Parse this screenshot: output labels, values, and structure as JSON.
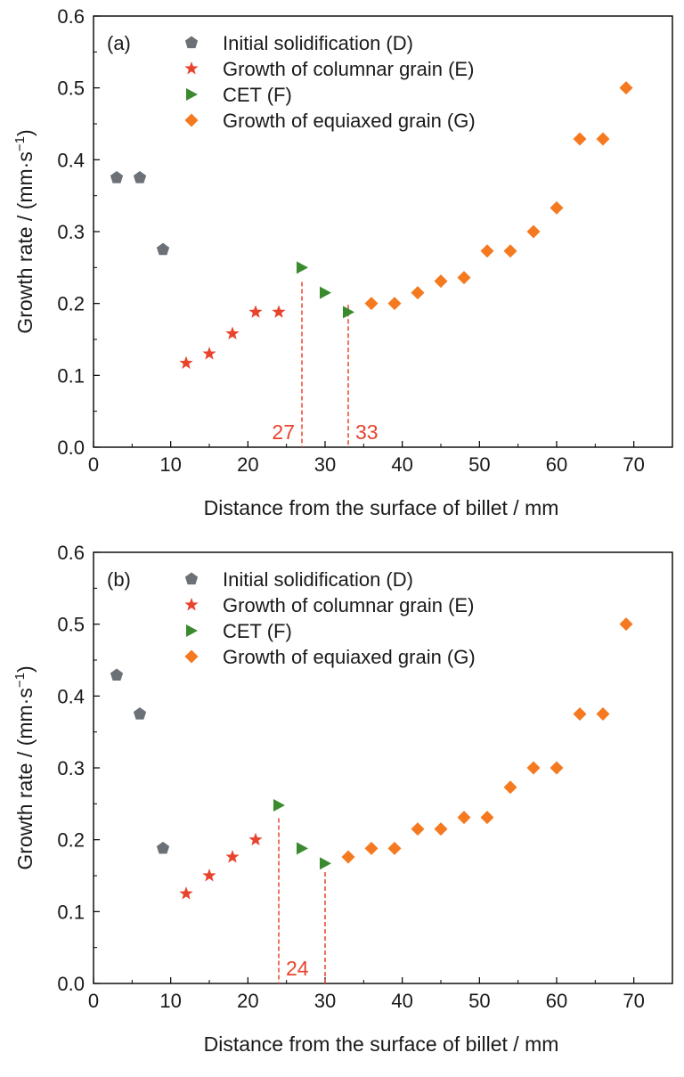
{
  "chart_data": [
    {
      "type": "scatter",
      "panel_label": "(a)",
      "xlabel": "Distance from the surface of billet / mm",
      "ylabel_main": "Growth rate / (mm·s",
      "ylabel_sup": "−1",
      "ylabel_end": ")",
      "xlim": [
        0,
        75
      ],
      "ylim": [
        0,
        0.6
      ],
      "xticks": [
        "0",
        "10",
        "20",
        "30",
        "40",
        "50",
        "60",
        "70"
      ],
      "yticks": [
        "0.0",
        "0.1",
        "0.2",
        "0.3",
        "0.4",
        "0.5",
        "0.6"
      ],
      "legend_position": "top-left",
      "series": [
        {
          "name": "Initial solidification (D)",
          "marker": "pentagon",
          "color": "#6b7177",
          "x": [
            3,
            6,
            9
          ],
          "y": [
            0.375,
            0.375,
            0.275
          ]
        },
        {
          "name": "Growth of columnar grain (E)",
          "marker": "star",
          "color": "#e8432d",
          "x": [
            12,
            15,
            18,
            21,
            24
          ],
          "y": [
            0.117,
            0.13,
            0.158,
            0.188,
            0.188
          ]
        },
        {
          "name": "CET (F)",
          "marker": "triangle-right",
          "color": "#3a8a2e",
          "x": [
            27,
            30,
            33
          ],
          "y": [
            0.25,
            0.215,
            0.188
          ]
        },
        {
          "name": "Growth of equiaxed grain (G)",
          "marker": "diamond",
          "color": "#f5791f",
          "x": [
            36,
            39,
            42,
            45,
            48,
            51,
            54,
            57,
            60,
            63,
            66,
            69
          ],
          "y": [
            0.2,
            0.2,
            0.215,
            0.231,
            0.236,
            0.273,
            0.273,
            0.3,
            0.333,
            0.429,
            0.429,
            0.5
          ]
        }
      ],
      "annotations": [
        {
          "text": "27",
          "x": 27,
          "y_top": 0.23,
          "side": "left"
        },
        {
          "text": "33",
          "x": 33,
          "y_top": 0.198,
          "side": "right"
        }
      ]
    },
    {
      "type": "scatter",
      "panel_label": "(b)",
      "xlabel": "Distance from the surface of billet / mm",
      "ylabel_main": "Growth rate / (mm·s",
      "ylabel_sup": "−1",
      "ylabel_end": ")",
      "xlim": [
        0,
        75
      ],
      "ylim": [
        0,
        0.6
      ],
      "xticks": [
        "0",
        "10",
        "20",
        "30",
        "40",
        "50",
        "60",
        "70"
      ],
      "yticks": [
        "0.0",
        "0.1",
        "0.2",
        "0.3",
        "0.4",
        "0.5",
        "0.6"
      ],
      "legend_position": "top-left",
      "series": [
        {
          "name": "Initial solidification (D)",
          "marker": "pentagon",
          "color": "#6b7177",
          "x": [
            3,
            6,
            9
          ],
          "y": [
            0.429,
            0.375,
            0.188
          ]
        },
        {
          "name": "Growth of columnar grain (E)",
          "marker": "star",
          "color": "#e8432d",
          "x": [
            12,
            15,
            18,
            21
          ],
          "y": [
            0.125,
            0.15,
            0.176,
            0.2
          ]
        },
        {
          "name": "CET (F)",
          "marker": "triangle-right",
          "color": "#3a8a2e",
          "x": [
            24,
            27,
            30
          ],
          "y": [
            0.248,
            0.188,
            0.167
          ]
        },
        {
          "name": "Growth of equiaxed grain (G)",
          "marker": "diamond",
          "color": "#f5791f",
          "x": [
            33,
            36,
            39,
            42,
            45,
            48,
            51,
            54,
            57,
            60,
            63,
            66,
            69
          ],
          "y": [
            0.176,
            0.188,
            0.188,
            0.215,
            0.215,
            0.231,
            0.231,
            0.273,
            0.3,
            0.3,
            0.375,
            0.375,
            0.5
          ]
        }
      ],
      "annotations": [
        {
          "text": "24",
          "x": 24,
          "y_top": 0.23,
          "side": "right"
        },
        {
          "text": "",
          "x": 30,
          "y_top": 0.155,
          "side": "none"
        }
      ]
    }
  ]
}
